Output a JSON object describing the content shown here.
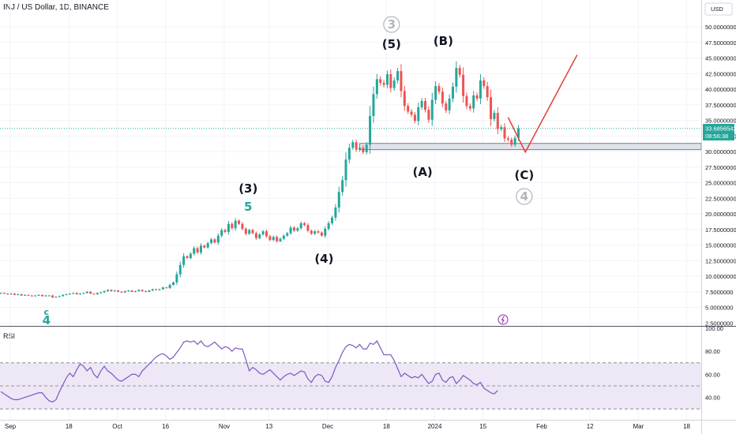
{
  "header": {
    "title": "INJ / US Dollar, 1D, BINANCE",
    "currency": "USD"
  },
  "rsi": {
    "label": "RSI",
    "ticks": [
      "100.00",
      "80.00",
      "60.00",
      "40.00"
    ]
  },
  "price_badge": {
    "price": "33.6856542",
    "countdown": "08:56:38"
  },
  "colors": {
    "up": "#26a69a",
    "down": "#ef5350",
    "projection": "#e53935",
    "rsi_line": "#7e57c2",
    "rsi_band": "#ede7f6"
  },
  "chart_data": [
    {
      "type": "candlestick",
      "title": "INJ / US Dollar, 1D, BINANCE",
      "y_axis": {
        "unit": "USD",
        "range": [
          2.5,
          52.5
        ],
        "tick_labels": [
          "50.0000000",
          "47.5000000",
          "45.0000000",
          "42.5000000",
          "40.0000000",
          "37.5000000",
          "35.0000000",
          "32.5000000",
          "30.0000000",
          "27.5000000",
          "25.0000000",
          "22.5000000",
          "20.0000000",
          "17.5000000",
          "15.0000000",
          "12.5000000",
          "10.0000000",
          "7.5000000",
          "5.0000000",
          "2.5000000"
        ]
      },
      "x_axis": {
        "tick_labels": [
          "Sep",
          "18",
          "Oct",
          "16",
          "Nov",
          "13",
          "Dec",
          "18",
          "2024",
          "15",
          "Feb",
          "12",
          "Mar",
          "18"
        ],
        "tick_day_index": [
          0,
          17,
          31,
          45,
          62,
          75,
          92,
          109,
          123,
          137,
          154,
          168,
          182,
          196
        ]
      },
      "close_series": [
        7.3,
        7.2,
        7.1,
        7.2,
        7.0,
        7.1,
        6.9,
        7.0,
        6.9,
        6.8,
        6.9,
        7.0,
        6.8,
        6.9,
        6.9,
        6.6,
        6.7,
        6.8,
        7.0,
        7.1,
        7.2,
        7.3,
        7.1,
        7.2,
        7.3,
        7.5,
        7.2,
        7.1,
        7.3,
        7.4,
        7.6,
        7.8,
        7.6,
        7.7,
        7.5,
        7.4,
        7.6,
        7.7,
        7.5,
        7.6,
        7.8,
        7.6,
        7.5,
        7.7,
        7.9,
        7.8,
        7.9,
        8.2,
        8.1,
        8.6,
        9.0,
        10.3,
        11.8,
        13.2,
        12.9,
        13.6,
        14.5,
        13.8,
        14.9,
        14.6,
        15.3,
        15.9,
        15.4,
        16.5,
        17.4,
        17.1,
        18.4,
        17.7,
        18.9,
        18.4,
        17.6,
        16.8,
        17.4,
        16.9,
        16.1,
        16.7,
        17.2,
        16.4,
        15.8,
        16.3,
        15.6,
        16.0,
        16.5,
        16.9,
        17.8,
        17.3,
        17.7,
        18.5,
        18.2,
        17.3,
        16.8,
        17.2,
        17.0,
        16.5,
        17.6,
        18.5,
        19.4,
        21.0,
        23.5,
        25.4,
        28.7,
        30.6,
        31.5,
        30.3,
        30.6,
        29.9,
        31.1,
        35.7,
        39.2,
        41.6,
        41.0,
        40.7,
        42.4,
        40.2,
        41.4,
        42.9,
        39.7,
        37.3,
        36.4,
        35.9,
        34.9,
        37.1,
        38.1,
        36.7,
        35.1,
        38.3,
        40.5,
        39.6,
        37.7,
        36.6,
        38.5,
        40.4,
        43.4,
        42.3,
        38.9,
        37.3,
        36.9,
        39.0,
        38.5,
        41.4,
        40.5,
        38.7,
        35.2,
        36.2,
        33.6,
        33.9,
        32.1,
        31.9,
        31.1,
        32.2,
        33.7
      ],
      "annotations": [
        {
          "text": "3",
          "style": "circle",
          "anchor": "high-of-wave-(5)",
          "day_index": 113
        },
        {
          "text": "(5)",
          "day_index": 113,
          "price_level": "above high"
        },
        {
          "text": "(B)",
          "day_index": 128,
          "price_level": "above high"
        },
        {
          "text": "(A)",
          "day_index": 122,
          "price_level": "below low"
        },
        {
          "text": "(C)",
          "day_index": 151,
          "price_level": "projected"
        },
        {
          "text": "4",
          "style": "circle",
          "day_index": 151,
          "price_level": "projected"
        },
        {
          "text": "(3)",
          "day_index": 71
        },
        {
          "text": "5",
          "color": "#26a69a",
          "day_index": 71
        },
        {
          "text": "(4)",
          "day_index": 93
        },
        {
          "text": "c",
          "color": "#26a69a",
          "day_index": 13
        },
        {
          "text": "4",
          "color": "#26a69a",
          "day_index": 13
        }
      ],
      "support_zone": [
        30.3,
        31.3
      ],
      "projection_path": [
        {
          "day_index": 147,
          "price": 35.5
        },
        {
          "day_index": 152,
          "price": 29.9
        },
        {
          "day_index": 167,
          "price": 45.5
        }
      ]
    },
    {
      "type": "line",
      "title": "RSI",
      "y_axis": {
        "tick_labels": [
          "100.00",
          "80.00",
          "60.00",
          "40.00"
        ],
        "range": [
          24,
          100
        ]
      },
      "overbought": 70,
      "oversold": 30,
      "midline": 50,
      "values": [
        45,
        43,
        41,
        39,
        38,
        38,
        39,
        40,
        41,
        42,
        43,
        44,
        44,
        40,
        37,
        36,
        38,
        45,
        51,
        57,
        61,
        58,
        64,
        69,
        67,
        63,
        66,
        60,
        57,
        63,
        67,
        63,
        61,
        58,
        55,
        54,
        56,
        58,
        60,
        60,
        58,
        63,
        66,
        69,
        72,
        75,
        77,
        78,
        76,
        73,
        75,
        79,
        83,
        88,
        89,
        88,
        89,
        86,
        89,
        85,
        84,
        86,
        88,
        85,
        82,
        84,
        83,
        80,
        83,
        82,
        82,
        73,
        63,
        66,
        64,
        61,
        60,
        62,
        64,
        61,
        58,
        55,
        58,
        60,
        61,
        59,
        61,
        63,
        62,
        56,
        53,
        58,
        60,
        59,
        54,
        53,
        58,
        66,
        72,
        79,
        84,
        86,
        85,
        83,
        86,
        82,
        82,
        87,
        86,
        89,
        83,
        77,
        77,
        77,
        72,
        65,
        58,
        61,
        59,
        57,
        58,
        57,
        60,
        56,
        52,
        54,
        60,
        61,
        55,
        53,
        57,
        58,
        52,
        55,
        59,
        57,
        55,
        52,
        51,
        53,
        48,
        46,
        44,
        43,
        46
      ]
    }
  ]
}
